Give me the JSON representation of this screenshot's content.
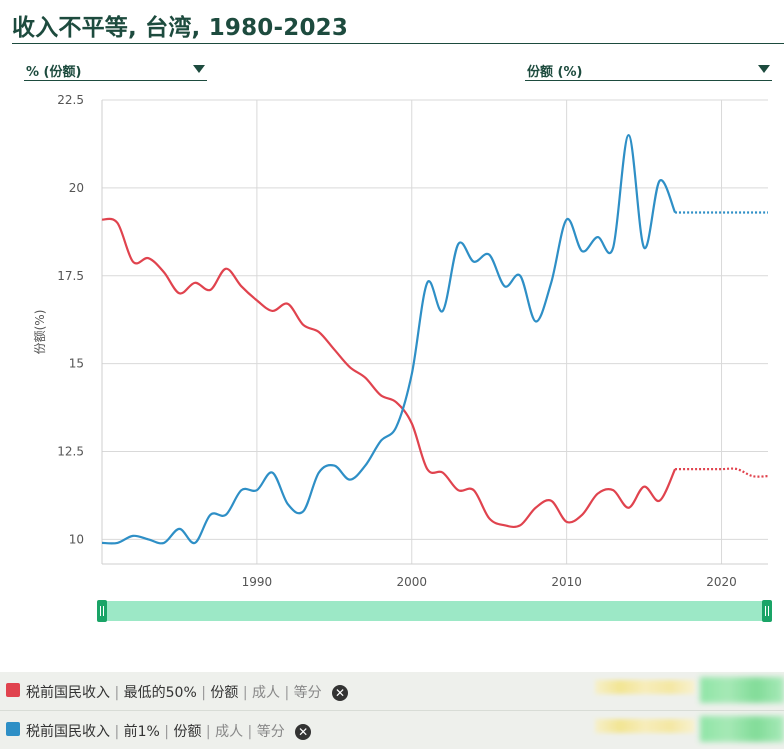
{
  "header": {
    "title": "收入不平等, 台湾, 1980-2023"
  },
  "controls": {
    "left_dropdown": "% (份额)",
    "right_dropdown": "份额 (%)"
  },
  "chart_data": {
    "type": "line",
    "ylabel": "份额(%)",
    "ylim": [
      9.3,
      22.5
    ],
    "yticks": [
      10,
      12.5,
      15,
      17.5,
      20,
      22.5
    ],
    "ytick_labels": [
      "10",
      "12.5",
      "15",
      "17.5",
      "20",
      "22.5"
    ],
    "xlim": [
      1980,
      2023
    ],
    "xticks": [
      1990,
      2000,
      2010,
      2020
    ],
    "xtick_labels": [
      "1990",
      "2000",
      "2010",
      "2020"
    ],
    "grid": true,
    "observed_until": 2017,
    "series": [
      {
        "name": "税前国民收入 | 最低的50% | 份额 | 成人 | 等分",
        "color": "#e0434e",
        "x": [
          1980,
          1981,
          1982,
          1983,
          1984,
          1985,
          1986,
          1987,
          1988,
          1989,
          1990,
          1991,
          1992,
          1993,
          1994,
          1995,
          1996,
          1997,
          1998,
          1999,
          2000,
          2001,
          2002,
          2003,
          2004,
          2005,
          2006,
          2007,
          2008,
          2009,
          2010,
          2011,
          2012,
          2013,
          2014,
          2015,
          2016,
          2017,
          2018,
          2019,
          2020,
          2021,
          2022,
          2023
        ],
        "values": [
          19.1,
          19.0,
          17.9,
          18.0,
          17.6,
          17.0,
          17.3,
          17.1,
          17.7,
          17.2,
          16.8,
          16.5,
          16.7,
          16.1,
          15.9,
          15.4,
          14.9,
          14.6,
          14.1,
          13.9,
          13.3,
          12.0,
          11.9,
          11.4,
          11.4,
          10.6,
          10.4,
          10.4,
          10.9,
          11.1,
          10.5,
          10.7,
          11.3,
          11.4,
          10.9,
          11.5,
          11.1,
          12.0,
          12.0,
          12.0,
          12.0,
          12.0,
          11.8,
          11.8
        ]
      },
      {
        "name": "税前国民收入 | 前1% | 份额 | 成人 | 等分",
        "color": "#2e8fc6",
        "x": [
          1980,
          1981,
          1982,
          1983,
          1984,
          1985,
          1986,
          1987,
          1988,
          1989,
          1990,
          1991,
          1992,
          1993,
          1994,
          1995,
          1996,
          1997,
          1998,
          1999,
          2000,
          2001,
          2002,
          2003,
          2004,
          2005,
          2006,
          2007,
          2008,
          2009,
          2010,
          2011,
          2012,
          2013,
          2014,
          2015,
          2016,
          2017,
          2018,
          2019,
          2020,
          2021,
          2022,
          2023
        ],
        "values": [
          9.9,
          9.9,
          10.1,
          10.0,
          9.9,
          10.3,
          9.9,
          10.7,
          10.7,
          11.4,
          11.4,
          11.9,
          11.0,
          10.8,
          11.9,
          12.1,
          11.7,
          12.1,
          12.8,
          13.2,
          14.7,
          17.3,
          16.5,
          18.4,
          17.9,
          18.1,
          17.2,
          17.5,
          16.2,
          17.3,
          19.1,
          18.2,
          18.6,
          18.3,
          21.5,
          18.3,
          20.2,
          19.3,
          19.3,
          19.3,
          19.3,
          19.3,
          19.3,
          19.3
        ]
      }
    ]
  },
  "legend": [
    {
      "color": "#e0434e",
      "parts": [
        "税前国民收入",
        "最低的50%",
        "份额"
      ],
      "muted_parts": [
        "成人",
        "等分"
      ],
      "close_icon": "x-circle-icon"
    },
    {
      "color": "#2e8fc6",
      "parts": [
        "税前国民收入",
        "前1%",
        "份额"
      ],
      "muted_parts": [
        "成人",
        "等分"
      ],
      "close_icon": "x-circle-icon"
    }
  ],
  "range_slider": {
    "start": 1980,
    "end": 2023
  }
}
